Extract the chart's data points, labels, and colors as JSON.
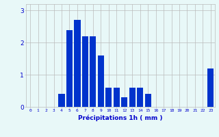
{
  "categories": [
    0,
    1,
    2,
    3,
    4,
    5,
    6,
    7,
    8,
    9,
    10,
    11,
    12,
    13,
    14,
    15,
    16,
    17,
    18,
    19,
    20,
    21,
    22,
    23
  ],
  "values": [
    0,
    0,
    0,
    0,
    0.4,
    2.4,
    2.7,
    2.2,
    2.2,
    1.6,
    0.6,
    0.6,
    0.3,
    0.6,
    0.6,
    0.4,
    0,
    0,
    0,
    0,
    0,
    0,
    0,
    1.2
  ],
  "bar_color": "#0033cc",
  "background_color": "#e8f8f8",
  "grid_color": "#bbbbbb",
  "xlabel": "Précipitations 1h ( mm )",
  "xlabel_color": "#0000cc",
  "tick_color": "#0000cc",
  "ylim": [
    0,
    3.2
  ],
  "yticks": [
    0,
    1,
    2,
    3
  ],
  "figsize": [
    3.2,
    2.0
  ],
  "dpi": 100
}
